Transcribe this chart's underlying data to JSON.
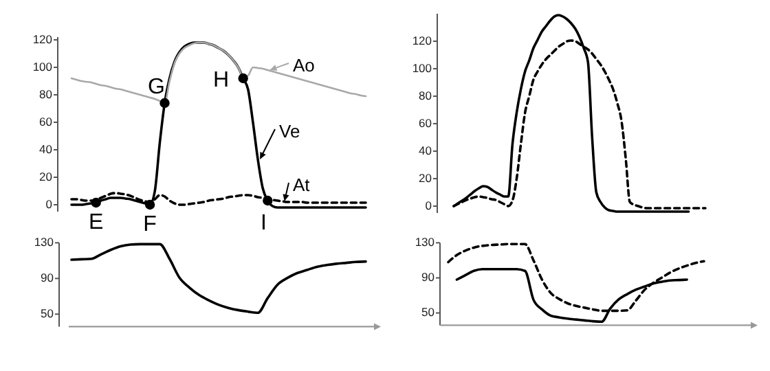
{
  "chart_data": [
    {
      "type": "line",
      "legend": "right",
      "tick_labels": "y",
      "ylim": [
        -5,
        122
      ],
      "yticks": [
        0,
        20,
        40,
        60,
        80,
        100,
        120
      ],
      "categories": [
        null,
        null,
        null,
        null,
        null,
        null,
        null,
        null,
        null,
        null,
        null,
        null,
        null,
        null,
        null,
        null,
        null,
        null,
        null,
        null,
        null,
        null,
        null,
        null,
        null,
        null,
        null,
        null,
        null,
        null,
        null,
        null,
        null,
        null,
        null,
        null,
        null,
        null,
        null,
        null,
        null,
        null,
        null,
        null,
        null,
        null,
        null,
        null,
        null,
        null,
        null,
        null,
        null,
        null,
        null,
        null,
        null,
        null,
        null,
        null,
        null
      ],
      "series": [
        {
          "name": "Ve",
          "color": "#000000",
          "line_style": "solid",
          "values": [
            0,
            0,
            0,
            0.5,
            1,
            1.5,
            3,
            4,
            5,
            5,
            5,
            4.5,
            4,
            3,
            2,
            1,
            0,
            10,
            45,
            74,
            92,
            104,
            111,
            115,
            117,
            118,
            118,
            118,
            117,
            116,
            114,
            112,
            109,
            105,
            100,
            92,
            84,
            60,
            33,
            12,
            3,
            -1,
            -2,
            -2,
            -2,
            -2,
            -2,
            -2,
            -2,
            -2,
            -2,
            -2,
            -2,
            -2,
            -2,
            -2,
            -2,
            -2,
            -2,
            -2,
            -2
          ]
        },
        {
          "name": "Ao",
          "color": "#a8a8a8",
          "line_style": "solid",
          "values": [
            92,
            91,
            90,
            89.5,
            89,
            88,
            87,
            86.5,
            85.5,
            84.5,
            84,
            83,
            82,
            81,
            80,
            79,
            78,
            77,
            75.5,
            74,
            90,
            103,
            110,
            114,
            116,
            117.5,
            118,
            118,
            117,
            116,
            114,
            112,
            109,
            105,
            100,
            93,
            94,
            100,
            99.5,
            99,
            98,
            97,
            96,
            95,
            94,
            93,
            92,
            91,
            90,
            89,
            88,
            87,
            86,
            85,
            84,
            83,
            82,
            81,
            80.5,
            79.5,
            79
          ]
        },
        {
          "name": "At",
          "color": "#000000",
          "line_style": "dashed",
          "values": [
            4,
            4,
            3.5,
            3,
            3,
            3.5,
            5,
            6.5,
            8,
            8.5,
            8,
            7.5,
            6.5,
            5,
            3.5,
            2.5,
            2,
            4,
            7,
            6,
            3,
            1,
            0,
            0,
            0.5,
            1,
            1.5,
            2,
            3,
            3.5,
            4,
            4.5,
            5.5,
            6,
            6.5,
            7,
            7,
            6.5,
            5.5,
            5,
            4,
            3.5,
            3,
            2.5,
            2,
            2,
            2,
            2,
            1.5,
            1.5,
            1.5,
            1.5,
            1.5,
            1.5,
            1.5,
            1.5,
            1.5,
            1.5,
            1.5,
            1.5,
            1.5
          ]
        },
        {
          "type": "scatter",
          "marker": "circle",
          "color": "#000000",
          "values": [
            null,
            null,
            null,
            null,
            null,
            1.5,
            null,
            null,
            null,
            null,
            null,
            null,
            null,
            null,
            null,
            null,
            0,
            null,
            null,
            74,
            null,
            null,
            null,
            null,
            null,
            null,
            null,
            null,
            null,
            null,
            null,
            null,
            null,
            null,
            null,
            92,
            null,
            null,
            null,
            null,
            3,
            null,
            null,
            null,
            null,
            null,
            null,
            null,
            null,
            null,
            null,
            null,
            null,
            null,
            null,
            null,
            null,
            null,
            null,
            null,
            null
          ],
          "value_labels": [
            null,
            null,
            null,
            null,
            null,
            "E",
            null,
            null,
            null,
            null,
            null,
            null,
            null,
            null,
            null,
            null,
            "F",
            null,
            null,
            "G",
            null,
            null,
            null,
            null,
            null,
            null,
            null,
            null,
            null,
            null,
            null,
            null,
            null,
            null,
            null,
            "H",
            null,
            null,
            null,
            null,
            "I",
            null,
            null,
            null,
            null,
            null,
            null,
            null,
            null,
            null,
            null,
            null,
            null,
            null,
            null,
            null,
            null,
            null,
            null,
            null,
            null
          ]
        }
      ]
    },
    {
      "type": "line",
      "tick_labels": "y",
      "ylim": [
        -5,
        140
      ],
      "yticks": [
        0,
        20,
        40,
        60,
        80,
        100,
        120
      ],
      "categories": [
        null,
        null,
        null,
        null,
        null,
        null,
        null,
        null,
        null,
        null,
        null,
        null,
        null,
        null,
        null,
        null,
        null,
        null,
        null,
        null,
        null,
        null,
        null,
        null,
        null,
        null,
        null,
        null,
        null,
        null,
        null,
        null,
        null,
        null,
        null,
        null,
        null,
        null,
        null,
        null,
        null,
        null,
        null,
        null,
        null,
        null,
        null,
        null,
        null,
        null,
        null,
        null,
        null,
        null,
        null,
        null,
        null,
        null,
        null,
        null,
        null
      ],
      "series": [
        {
          "color": "#000000",
          "line_style": "solid",
          "values": [
            0,
            2,
            4,
            6,
            8.5,
            11,
            13,
            14.5,
            14,
            12,
            10,
            8.5,
            7,
            7,
            45,
            68,
            85,
            98,
            106,
            115,
            121,
            127,
            131,
            135,
            138,
            139,
            138,
            136,
            133,
            129,
            123,
            115,
            105,
            50,
            10,
            3,
            -1,
            -3,
            -3.5,
            -4,
            -4,
            -4,
            -4,
            -4,
            -4,
            -4,
            -4,
            -4,
            -4,
            -4,
            -4,
            -4,
            -4,
            -4,
            -4,
            -4,
            -4,
            null,
            null,
            null,
            null
          ]
        },
        {
          "color": "#000000",
          "line_style": "dashed",
          "values": [
            0,
            1.5,
            3,
            4.5,
            5.5,
            6.5,
            7,
            6.5,
            6,
            5,
            4.5,
            3,
            1.5,
            0,
            4,
            20,
            45,
            68,
            80,
            92,
            98,
            103,
            107,
            110,
            113,
            116,
            118,
            120,
            120.5,
            120,
            118,
            116,
            114,
            111,
            107,
            103,
            98,
            92,
            85,
            75,
            62,
            35,
            3,
            1,
            0,
            -1,
            -1.5,
            -1.5,
            -1.5,
            -1.5,
            -1.5,
            -1.5,
            -1.5,
            -1.5,
            -1.5,
            -1.5,
            -1.5,
            -1.5,
            -1.5,
            -1.5,
            -1.5
          ]
        }
      ]
    },
    {
      "type": "line",
      "tick_labels": "y",
      "ylim": [
        36,
        130
      ],
      "yticks": [
        50,
        90,
        130
      ],
      "categories": [
        null,
        null,
        null,
        null,
        null,
        null,
        null,
        null,
        null,
        null,
        null,
        null,
        null,
        null,
        null,
        null,
        null,
        null,
        null,
        null,
        null,
        null,
        null,
        null,
        null,
        null,
        null,
        null,
        null,
        null,
        null
      ],
      "series": [
        {
          "color": "#000000",
          "line_style": "solid",
          "values": [
            111,
            111.5,
            112,
            117,
            122,
            126,
            128,
            128.5,
            128.5,
            128.5,
            112,
            91,
            80,
            71.5,
            65.5,
            60.5,
            57,
            54.5,
            52.8,
            51.5,
            68,
            83,
            90.5,
            96,
            99.5,
            103,
            105,
            106.5,
            107.5,
            108.5,
            109
          ]
        }
      ]
    },
    {
      "type": "line",
      "tick_labels": "y",
      "ylim": [
        36,
        130
      ],
      "yticks": [
        50,
        90,
        130
      ],
      "categories": [
        null,
        null,
        null,
        null,
        null,
        null,
        null,
        null,
        null,
        null,
        null,
        null,
        null,
        null,
        null,
        null,
        null,
        null,
        null,
        null,
        null,
        null,
        null,
        null,
        null,
        null,
        null,
        null,
        null,
        null,
        null
      ],
      "series": [
        {
          "color": "#000000",
          "line_style": "solid",
          "values": [
            null,
            88,
            93,
            98,
            100,
            100,
            100,
            100,
            100,
            98,
            65,
            54,
            47,
            45,
            43.5,
            42.5,
            41.5,
            40.5,
            40,
            55,
            65.5,
            71.5,
            76.5,
            80,
            83.5,
            85.5,
            87,
            87.5,
            88,
            null,
            null
          ]
        },
        {
          "color": "#000000",
          "line_style": "dashed",
          "values": [
            108,
            116,
            121,
            124.5,
            126.5,
            127.5,
            128,
            128.5,
            128.5,
            128.5,
            110,
            88,
            73,
            66,
            61,
            58,
            56,
            54,
            52.5,
            52.5,
            52.5,
            53,
            64,
            76,
            84,
            90,
            96,
            100.5,
            104,
            107,
            109
          ]
        }
      ]
    }
  ]
}
